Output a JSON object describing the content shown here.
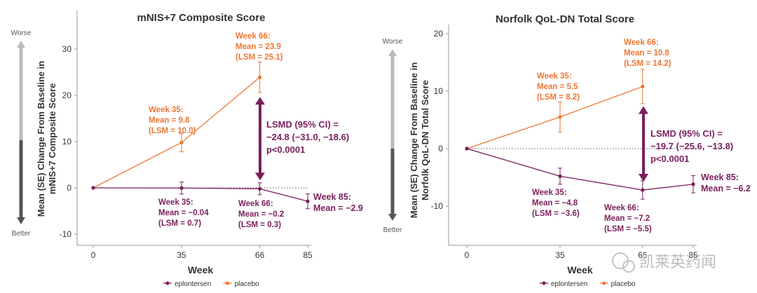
{
  "colors": {
    "eplontersen": "#7a1f5c",
    "placebo": "#ee7733",
    "axis": "#999999",
    "arrow_dark": "#555555",
    "arrow_light": "#bbbbbb"
  },
  "scale_labels": {
    "worse": "Worse",
    "better": "Better"
  },
  "watermark": "凯莱英药闻",
  "chart_data": [
    {
      "type": "line",
      "title": "mNIS+7 Composite Score",
      "ylabel_lines": [
        "Mean (SE) Change From Baseline in",
        "mNIS+7 Composite Score"
      ],
      "xlabel": "Week",
      "ylim": [
        -12,
        35
      ],
      "yticks": [
        -10,
        0,
        10,
        20,
        30
      ],
      "x_categories": [
        "0",
        "35",
        "66",
        "85"
      ],
      "series": [
        {
          "name": "eplontersen",
          "x": [
            "0",
            "35",
            "66",
            "85"
          ],
          "y": [
            0,
            -0.04,
            -0.2,
            -2.9
          ],
          "se": [
            0,
            1.3,
            1.3,
            1.6
          ]
        },
        {
          "name": "placebo",
          "x": [
            "0",
            "35",
            "66"
          ],
          "y": [
            0,
            9.8,
            23.9
          ],
          "se": [
            0,
            2.0,
            3.3
          ]
        }
      ],
      "annotations": [
        {
          "series": "placebo",
          "lines": [
            "Week 35:",
            "Mean = 9.8",
            "(LSM = 10.0)"
          ]
        },
        {
          "series": "placebo",
          "lines": [
            "Week 66:",
            "Mean = 23.9",
            "(LSM = 25.1)"
          ]
        },
        {
          "series": "eplontersen",
          "lines": [
            "Week 35:",
            "Mean = −0.04",
            "(LSM = 0.7)"
          ]
        },
        {
          "series": "eplontersen",
          "lines": [
            "Week 66:",
            "Mean = −0.2",
            "(LSM = 0.3)"
          ]
        },
        {
          "series": "eplontersen",
          "lines": [
            "Week 85:",
            "Mean = −2.9"
          ]
        }
      ],
      "lsmd_lines": [
        "LSMD (95% CI) =",
        "−24.8 (−31.0, −18.6)",
        "p<0.0001"
      ],
      "legend": [
        "eplontersen",
        "placebo"
      ]
    },
    {
      "type": "line",
      "title": "Norfolk QoL-DN Total Score",
      "ylabel_lines": [
        "Mean (SE) Change From Baseline in",
        "Norfolk QoL-DN Total Score"
      ],
      "xlabel": "Week",
      "ylim": [
        -16,
        21
      ],
      "yticks": [
        -10,
        0,
        10,
        20
      ],
      "x_categories": [
        "0",
        "35",
        "66",
        "85"
      ],
      "series": [
        {
          "name": "eplontersen",
          "x": [
            "0",
            "35",
            "66",
            "85"
          ],
          "y": [
            0,
            -4.8,
            -7.2,
            -6.2
          ],
          "se": [
            0,
            1.4,
            1.6,
            1.5
          ]
        },
        {
          "name": "placebo",
          "x": [
            "0",
            "35",
            "66"
          ],
          "y": [
            0,
            5.5,
            10.8
          ],
          "se": [
            0,
            2.6,
            3.0
          ]
        }
      ],
      "annotations": [
        {
          "series": "placebo",
          "lines": [
            "Week 35:",
            "Mean = 5.5",
            "(LSM = 8.2)"
          ]
        },
        {
          "series": "placebo",
          "lines": [
            "Week 66:",
            "Mean = 10.8",
            "(LSM = 14.2)"
          ]
        },
        {
          "series": "eplontersen",
          "lines": [
            "Week 35:",
            "Mean = −4.8",
            "(LSM = −3.6)"
          ]
        },
        {
          "series": "eplontersen",
          "lines": [
            "Week 66:",
            "Mean = −7.2",
            "(LSM = −5.5)"
          ]
        },
        {
          "series": "eplontersen",
          "lines": [
            "Week 85:",
            "Mean = −6.2"
          ]
        }
      ],
      "lsmd_lines": [
        "LSMD (95% CI) =",
        "−19.7 (−25.6, −13.8)",
        "p<0.0001"
      ],
      "legend": [
        "eplontersen",
        "placebo"
      ]
    }
  ]
}
